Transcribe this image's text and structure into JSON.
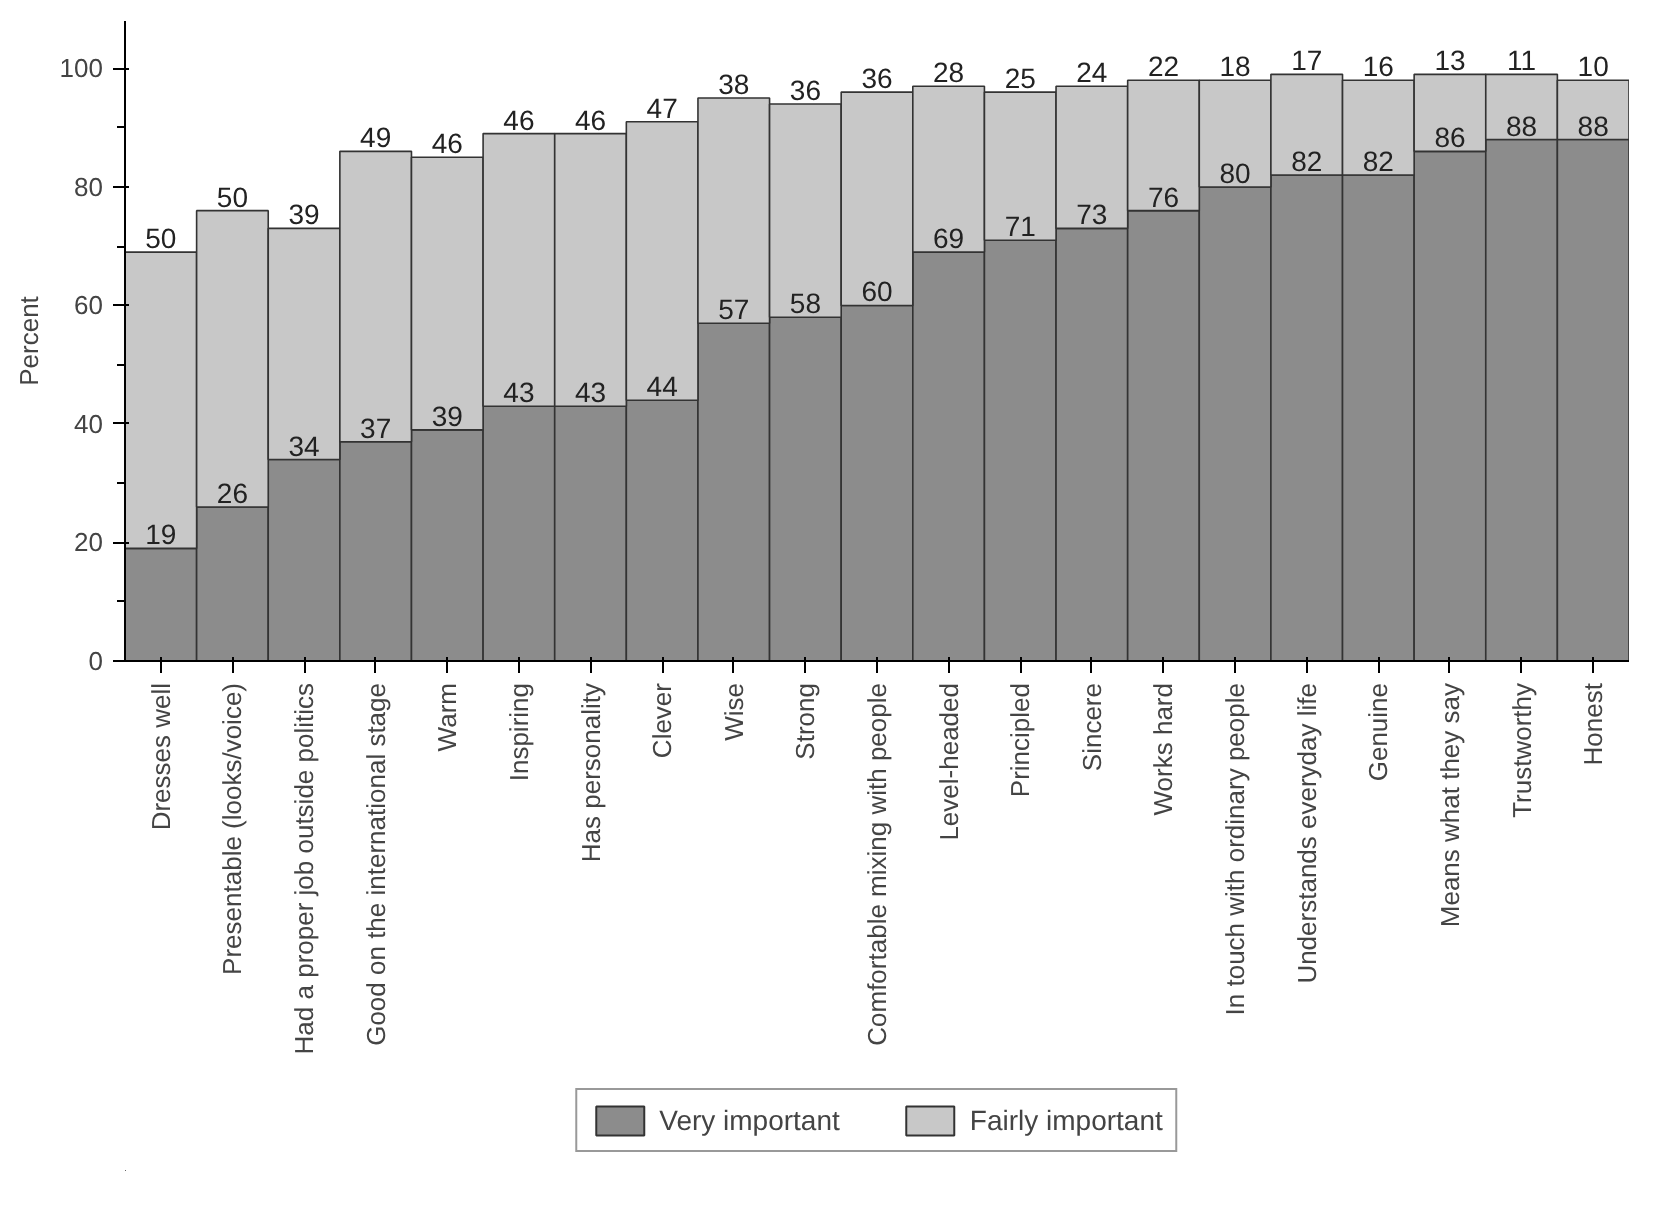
{
  "chart_data": {
    "type": "bar",
    "stacked": true,
    "ylabel": "Percent",
    "categories": [
      "Dresses well",
      "Presentable (looks/voice)",
      "Had a proper job outside politics",
      "Good on the international stage",
      "Warm",
      "Inspiring",
      "Has personality",
      "Clever",
      "Wise",
      "Strong",
      "Comfortable mixing with people",
      "Level-headed",
      "Principled",
      "Sincere",
      "Works hard",
      "In touch with ordinary people",
      "Understands everyday life",
      "Genuine",
      "Means what they say",
      "Trustworthy",
      "Honest"
    ],
    "series": [
      {
        "name": "Very important",
        "color": "#8c8c8c",
        "values": [
          19,
          26,
          34,
          37,
          39,
          43,
          43,
          44,
          57,
          58,
          60,
          69,
          71,
          73,
          76,
          80,
          82,
          82,
          86,
          88,
          88
        ]
      },
      {
        "name": "Fairly important",
        "color": "#c8c8c8",
        "values": [
          50,
          50,
          39,
          49,
          46,
          46,
          46,
          47,
          38,
          36,
          36,
          28,
          25,
          24,
          22,
          18,
          17,
          16,
          13,
          11,
          10
        ]
      }
    ],
    "ylim": [
      0,
      108
    ],
    "yticks": [
      0,
      {
        "value": 10,
        "label": null
      },
      20,
      {
        "value": 30,
        "label": null
      },
      40,
      {
        "value": 50,
        "label": null
      },
      60,
      {
        "value": 70,
        "label": null
      },
      80,
      {
        "value": 90,
        "label": null
      },
      100
    ],
    "data_labels": true,
    "legend": "bottom",
    "grid": false
  }
}
